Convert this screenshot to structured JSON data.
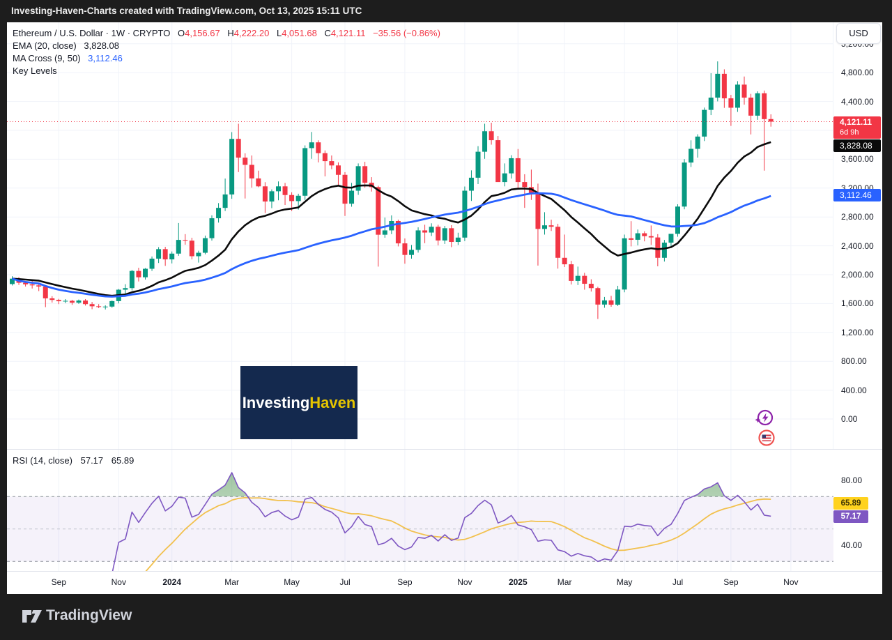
{
  "header_bar": {
    "title": "Investing-Haven-Charts created with TradingView.com, Oct 13, 2025 15:11 UTC"
  },
  "legend": {
    "symbol": "Ethereum / U.S. Dollar · 1W · CRYPTO",
    "o_label": "O",
    "o": "4,156.67",
    "h_label": "H",
    "h": "4,222.20",
    "l_label": "L",
    "l": "4,051.68",
    "c_label": "C",
    "c": "4,121.11",
    "change": "−35.56 (−0.86%)",
    "ema_label": "EMA (20, close)",
    "ema_value": "3,828.08",
    "ma_label": "MA Cross (9, 50)",
    "ma_value": "3,112.46",
    "key_levels_label": "Key Levels"
  },
  "currency_button": "USD",
  "badges": {
    "last_price": "4,121.11",
    "countdown": "6d 9h",
    "ema_value": "3,828.08",
    "ma_value": "3,112.46",
    "rsi_ma_value": "65.89",
    "rsi_value": "57.17"
  },
  "watermark": {
    "part1": "Investing",
    "part2": "Haven"
  },
  "rsi_legend": {
    "label": "RSI (14, close)",
    "value": "57.17",
    "ma_value": "65.89"
  },
  "footer": {
    "brand": "TradingView"
  },
  "colors": {
    "up": "#089981",
    "down": "#f23645",
    "ema": "#0b0b0b",
    "ma50": "#2962ff",
    "rsi": "#7e57c2",
    "rsi_ma": "#f2c14e",
    "last_line": "#f23645",
    "grid": "#f0f3fa"
  },
  "chart_data": {
    "type": "candlestick",
    "title": "Ethereum / U.S. Dollar",
    "interval": "1W",
    "exchange": "CRYPTO",
    "last": {
      "open": 4156.67,
      "high": 4222.2,
      "low": 4051.68,
      "close": 4121.11,
      "change": -35.56,
      "change_pct": -0.86
    },
    "overlays": [
      {
        "name": "EMA (20, close)",
        "color": "#0b0b0b",
        "last_value": 3828.08
      },
      {
        "name": "MA Cross (9, 50)",
        "color": "#2962ff",
        "last_value": 3112.46
      }
    ],
    "price_axis": {
      "min": 0,
      "max": 5400,
      "tick_step": 400,
      "last_price": 4121.11
    },
    "price_ticks": [
      {
        "label": "5,200.00",
        "value": 5200
      },
      {
        "label": "4,800.00",
        "value": 4800
      },
      {
        "label": "4,400.00",
        "value": 4400
      },
      {
        "label": "4,000.00",
        "value": 4000
      },
      {
        "label": "3,600.00",
        "value": 3600
      },
      {
        "label": "3,200.00",
        "value": 3200
      },
      {
        "label": "2,800.00",
        "value": 2800
      },
      {
        "label": "2,400.00",
        "value": 2400
      },
      {
        "label": "2,000.00",
        "value": 2000
      },
      {
        "label": "1,600.00",
        "value": 1600
      },
      {
        "label": "1,200.00",
        "value": 1200
      },
      {
        "label": "800.00",
        "value": 800
      },
      {
        "label": "400.00",
        "value": 400
      },
      {
        "label": "0.00",
        "value": 0
      }
    ],
    "time_ticks": [
      {
        "label": "Sep",
        "idx": 7,
        "bold": false
      },
      {
        "label": "Nov",
        "idx": 16,
        "bold": false
      },
      {
        "label": "2024",
        "idx": 24,
        "bold": true
      },
      {
        "label": "Mar",
        "idx": 33,
        "bold": false
      },
      {
        "label": "May",
        "idx": 42,
        "bold": false
      },
      {
        "label": "Jul",
        "idx": 50,
        "bold": false
      },
      {
        "label": "Sep",
        "idx": 59,
        "bold": false
      },
      {
        "label": "Nov",
        "idx": 68,
        "bold": false
      },
      {
        "label": "2025",
        "idx": 76,
        "bold": true
      },
      {
        "label": "Mar",
        "idx": 83,
        "bold": false
      },
      {
        "label": "May",
        "idx": 92,
        "bold": false
      },
      {
        "label": "Jul",
        "idx": 100,
        "bold": false
      },
      {
        "label": "Sep",
        "idx": 108,
        "bold": false
      },
      {
        "label": "Nov",
        "idx": 117,
        "bold": false
      }
    ],
    "rsi": {
      "name": "RSI (14, close)",
      "length": 14,
      "last_value": 57.17,
      "ma_last_value": 65.89,
      "levels": [
        70,
        50,
        30
      ],
      "ticks": [
        {
          "label": "80.00",
          "value": 80
        },
        {
          "label": "40.00",
          "value": 40
        }
      ]
    },
    "ohlc": [
      [
        1870,
        1980,
        1850,
        1945
      ],
      [
        1945,
        1968,
        1858,
        1888
      ],
      [
        1888,
        1912,
        1836,
        1866
      ],
      [
        1866,
        1930,
        1808,
        1852
      ],
      [
        1852,
        1890,
        1772,
        1836
      ],
      [
        1836,
        1852,
        1550,
        1672
      ],
      [
        1672,
        1702,
        1614,
        1650
      ],
      [
        1650,
        1665,
        1592,
        1632
      ],
      [
        1632,
        1662,
        1606,
        1638
      ],
      [
        1638,
        1652,
        1582,
        1612
      ],
      [
        1612,
        1656,
        1596,
        1642
      ],
      [
        1642,
        1662,
        1572,
        1592
      ],
      [
        1592,
        1622,
        1522,
        1562
      ],
      [
        1562,
        1592,
        1536,
        1552
      ],
      [
        1552,
        1576,
        1518,
        1558
      ],
      [
        1558,
        1642,
        1542,
        1634
      ],
      [
        1634,
        1802,
        1602,
        1792
      ],
      [
        1792,
        1868,
        1736,
        1814
      ],
      [
        1814,
        2066,
        1782,
        2052
      ],
      [
        2052,
        2096,
        1906,
        1964
      ],
      [
        1964,
        2092,
        1932,
        2082
      ],
      [
        2082,
        2252,
        2052,
        2222
      ],
      [
        2222,
        2382,
        2162,
        2354
      ],
      [
        2354,
        2386,
        2122,
        2212
      ],
      [
        2212,
        2322,
        2156,
        2292
      ],
      [
        2292,
        2716,
        2262,
        2482
      ],
      [
        2482,
        2562,
        2416,
        2472
      ],
      [
        2472,
        2512,
        2212,
        2256
      ],
      [
        2256,
        2332,
        2168,
        2304
      ],
      [
        2304,
        2542,
        2282,
        2506
      ],
      [
        2506,
        2822,
        2472,
        2782
      ],
      [
        2782,
        2992,
        2722,
        2926
      ],
      [
        2926,
        3332,
        2882,
        3112
      ],
      [
        3112,
        3976,
        3052,
        3882
      ],
      [
        3882,
        4092,
        3422,
        3622
      ],
      [
        3622,
        3682,
        3056,
        3522
      ],
      [
        3522,
        3652,
        3206,
        3334
      ],
      [
        3334,
        3442,
        3212,
        3224
      ],
      [
        3224,
        3282,
        2854,
        3014
      ],
      [
        3014,
        3182,
        2922,
        3156
      ],
      [
        3156,
        3292,
        3032,
        3224
      ],
      [
        3224,
        3272,
        2966,
        3104
      ],
      [
        3104,
        3142,
        2882,
        3020
      ],
      [
        3020,
        3122,
        2902,
        3094
      ],
      [
        3094,
        3792,
        3036,
        3754
      ],
      [
        3754,
        3978,
        3606,
        3834
      ],
      [
        3834,
        3862,
        3556,
        3684
      ],
      [
        3684,
        3722,
        3362,
        3574
      ],
      [
        3574,
        3652,
        3462,
        3514
      ],
      [
        3514,
        3556,
        3242,
        3384
      ],
      [
        3384,
        3422,
        2814,
        2984
      ],
      [
        2984,
        3272,
        2942,
        3164
      ],
      [
        3164,
        3542,
        3106,
        3504
      ],
      [
        3504,
        3564,
        3206,
        3274
      ],
      [
        3274,
        3352,
        3152,
        3214
      ],
      [
        3214,
        3232,
        2112,
        2554
      ],
      [
        2554,
        2792,
        2512,
        2614
      ],
      [
        2614,
        2822,
        2562,
        2744
      ],
      [
        2744,
        2762,
        2392,
        2434
      ],
      [
        2434,
        2502,
        2152,
        2274
      ],
      [
        2274,
        2412,
        2222,
        2344
      ],
      [
        2344,
        2656,
        2306,
        2614
      ],
      [
        2614,
        2692,
        2436,
        2584
      ],
      [
        2584,
        2712,
        2536,
        2664
      ],
      [
        2664,
        2692,
        2406,
        2474
      ],
      [
        2474,
        2676,
        2426,
        2644
      ],
      [
        2644,
        2686,
        2382,
        2454
      ],
      [
        2454,
        2582,
        2412,
        2514
      ],
      [
        2514,
        3222,
        2466,
        3164
      ],
      [
        3164,
        3446,
        3022,
        3344
      ],
      [
        3344,
        3782,
        3256,
        3704
      ],
      [
        3704,
        4092,
        3606,
        3988
      ],
      [
        3988,
        4106,
        3802,
        3864
      ],
      [
        3864,
        3922,
        3352,
        3284
      ],
      [
        3284,
        3542,
        3224,
        3404
      ],
      [
        3404,
        3656,
        3332,
        3614
      ],
      [
        3614,
        3742,
        3196,
        3284
      ],
      [
        3284,
        3392,
        2926,
        3214
      ],
      [
        3214,
        3456,
        3036,
        3114
      ],
      [
        3114,
        3262,
        2126,
        2634
      ],
      [
        2634,
        2866,
        2556,
        2684
      ],
      [
        2684,
        2762,
        2606,
        2664
      ],
      [
        2664,
        2706,
        2084,
        2234
      ],
      [
        2234,
        2556,
        2106,
        2144
      ],
      [
        2144,
        2192,
        1864,
        1914
      ],
      [
        1914,
        2112,
        1856,
        1984
      ],
      [
        1984,
        2026,
        1792,
        1874
      ],
      [
        1874,
        1936,
        1766,
        1814
      ],
      [
        1814,
        1832,
        1386,
        1586
      ],
      [
        1586,
        1692,
        1542,
        1644
      ],
      [
        1644,
        1706,
        1556,
        1584
      ],
      [
        1584,
        1846,
        1566,
        1794
      ],
      [
        1794,
        2556,
        1756,
        2504
      ],
      [
        2504,
        2742,
        2392,
        2484
      ],
      [
        2484,
        2626,
        2406,
        2574
      ],
      [
        2574,
        2602,
        2462,
        2534
      ],
      [
        2534,
        2682,
        2412,
        2516
      ],
      [
        2516,
        2562,
        2116,
        2234
      ],
      [
        2234,
        2482,
        2182,
        2444
      ],
      [
        2444,
        2522,
        2374,
        2566
      ],
      [
        2566,
        2976,
        2526,
        2944
      ],
      [
        2944,
        3602,
        2906,
        3554
      ],
      [
        3554,
        3862,
        3492,
        3744
      ],
      [
        3744,
        3946,
        3622,
        3914
      ],
      [
        3914,
        4316,
        3852,
        4284
      ],
      [
        4284,
        4792,
        4212,
        4454
      ],
      [
        4454,
        4956,
        4402,
        4784
      ],
      [
        4784,
        4846,
        4312,
        4444
      ],
      [
        4444,
        4492,
        4062,
        4314
      ],
      [
        4314,
        4682,
        4256,
        4634
      ],
      [
        4634,
        4746,
        4356,
        4454
      ],
      [
        4454,
        4506,
        3944,
        4204
      ],
      [
        4204,
        4542,
        4146,
        4514
      ],
      [
        4514,
        4552,
        3442,
        4156
      ],
      [
        4156.67,
        4222.2,
        4051.68,
        4121.11
      ]
    ]
  }
}
